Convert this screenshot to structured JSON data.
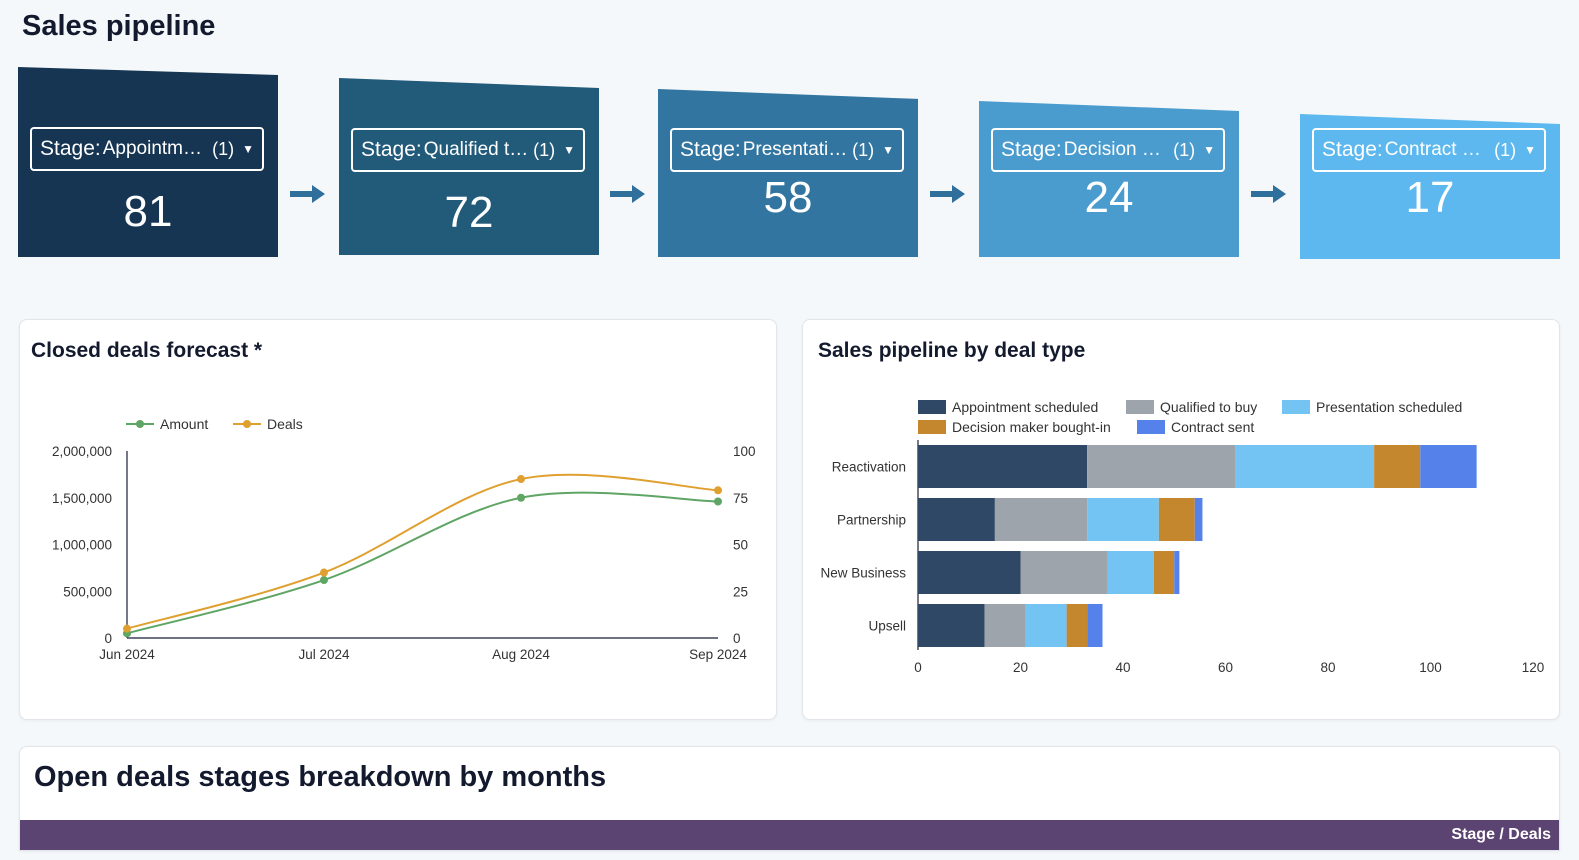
{
  "page": {
    "title": "Sales pipeline"
  },
  "funnel": {
    "stages": [
      {
        "key": "Stage",
        "value": "Appointm…",
        "count": "(1)",
        "number": "81",
        "color": "#163552"
      },
      {
        "key": "Stage",
        "value": "Qualified t…",
        "count": "(1)",
        "number": "72",
        "color": "#225a7a"
      },
      {
        "key": "Stage",
        "value": "Presentati…",
        "count": "(1)",
        "number": "58",
        "color": "#3275a0"
      },
      {
        "key": "Stage",
        "value": "Decision …",
        "count": "(1)",
        "number": "24",
        "color": "#4a9ccf"
      },
      {
        "key": "Stage",
        "value": "Contract s…",
        "count": "(1)",
        "number": "17",
        "color": "#5cb8ee"
      }
    ],
    "arrow_color": "#2e6f9c"
  },
  "forecast": {
    "title": "Closed deals forecast *",
    "chart_data": {
      "type": "line",
      "x": [
        "Jun 2024",
        "Jul 2024",
        "Aug 2024",
        "Sep 2024"
      ],
      "series": [
        {
          "name": "Amount",
          "axis": "left",
          "color": "#5fa564",
          "values": [
            50000,
            620000,
            1500000,
            1460000
          ]
        },
        {
          "name": "Deals",
          "axis": "right",
          "color": "#e0a030",
          "values": [
            5,
            35,
            85,
            79
          ]
        }
      ],
      "left_axis": {
        "min": 0,
        "max": 2000000,
        "ticks": [
          "0",
          "500,000",
          "1,000,000",
          "1,500,000",
          "2,000,000"
        ]
      },
      "right_axis": {
        "min": 0,
        "max": 100,
        "ticks": [
          "0",
          "25",
          "50",
          "75",
          "100"
        ]
      }
    }
  },
  "dealtype": {
    "title": "Sales pipeline by deal type",
    "chart_data": {
      "type": "bar",
      "orientation": "horizontal",
      "stacked": true,
      "categories": [
        "Reactivation",
        "Partnership",
        "New Business",
        "Upsell"
      ],
      "series": [
        {
          "name": "Appointment scheduled",
          "color": "#2e4866",
          "values": [
            33,
            15,
            20,
            13
          ]
        },
        {
          "name": "Qualified to buy",
          "color": "#9ea4ab",
          "values": [
            29,
            18,
            17,
            8
          ]
        },
        {
          "name": "Presentation scheduled",
          "color": "#73c4f2",
          "values": [
            27,
            14,
            9,
            8
          ]
        },
        {
          "name": "Decision maker bought-in",
          "color": "#c4872e",
          "values": [
            9,
            7,
            4,
            4
          ]
        },
        {
          "name": "Contract sent",
          "color": "#5482ea",
          "values": [
            11,
            1.5,
            1,
            3
          ]
        }
      ],
      "xlim": [
        0,
        120
      ],
      "xticks": [
        "0",
        "20",
        "40",
        "60",
        "80",
        "100",
        "120"
      ]
    }
  },
  "breakdown": {
    "title": "Open deals stages breakdown by months",
    "header_label": "Stage / Deals"
  }
}
